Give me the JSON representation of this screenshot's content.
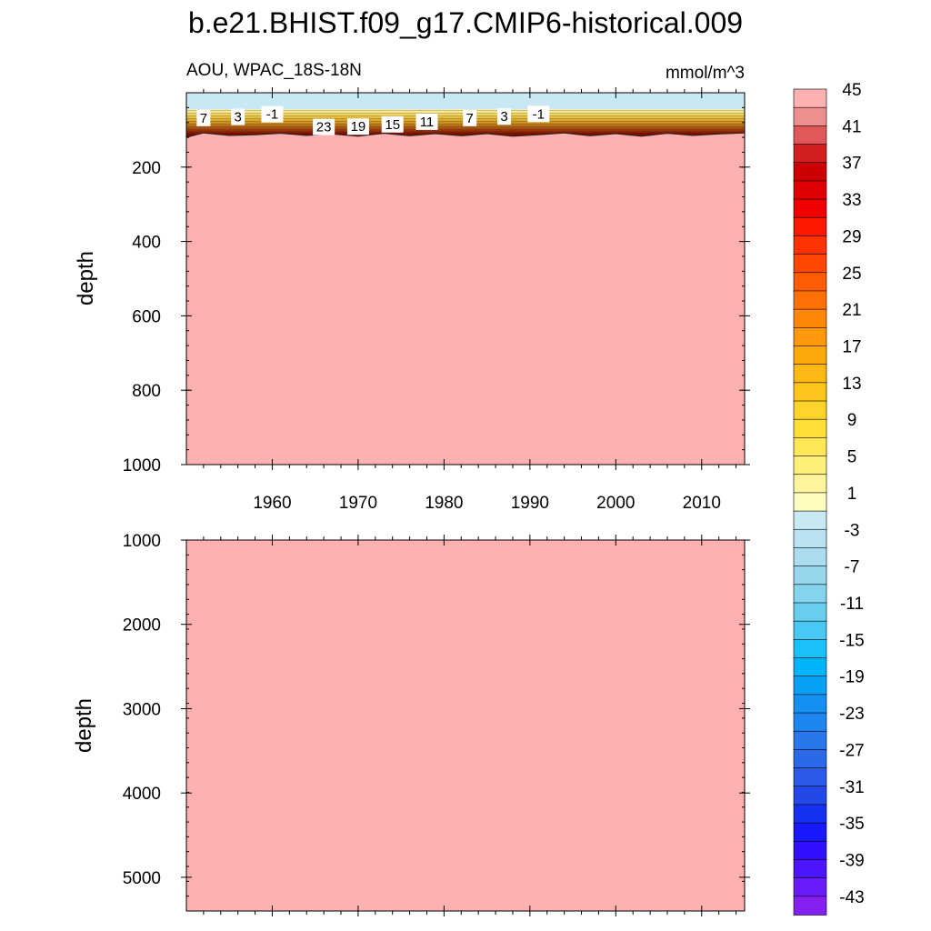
{
  "chart_data": {
    "type": "heatmap",
    "title": "b.e21.BHIST.f09_g17.CMIP6-historical.009",
    "subtitle_left": "AOU, WPAC_18S-18N",
    "subtitle_right": "mmol/m^3",
    "x": {
      "range": [
        1950,
        2015
      ],
      "ticks": [
        1960,
        1970,
        1980,
        1990,
        2000,
        2010
      ]
    },
    "panels": [
      {
        "ylabel": "depth",
        "ylim": [
          0,
          1000
        ],
        "yticks": [
          200,
          400,
          600,
          800,
          1000
        ],
        "surface_layer": {
          "value": -2,
          "depth_range": [
            0,
            45
          ]
        },
        "gradient_top_depth": 45,
        "max_contour_depth": 100,
        "interior_value": 47,
        "contour_labels": [
          {
            "year": 1952,
            "depth": 68,
            "text": "7"
          },
          {
            "year": 1956,
            "depth": 65,
            "text": "3"
          },
          {
            "year": 1960,
            "depth": 58,
            "text": "-1"
          },
          {
            "year": 1966,
            "depth": 92,
            "text": "23"
          },
          {
            "year": 1970,
            "depth": 91,
            "text": "19"
          },
          {
            "year": 1974,
            "depth": 85,
            "text": "15"
          },
          {
            "year": 1978,
            "depth": 78,
            "text": "11"
          },
          {
            "year": 1983,
            "depth": 68,
            "text": "7"
          },
          {
            "year": 1987,
            "depth": 64,
            "text": "3"
          },
          {
            "year": 1991,
            "depth": 57,
            "text": "-1"
          }
        ],
        "boundary": [
          {
            "year": 1950,
            "depth": 120
          },
          {
            "year": 1952,
            "depth": 108
          },
          {
            "year": 1955,
            "depth": 115
          },
          {
            "year": 1958,
            "depth": 113
          },
          {
            "year": 1961,
            "depth": 109
          },
          {
            "year": 1964,
            "depth": 115
          },
          {
            "year": 1967,
            "depth": 111
          },
          {
            "year": 1970,
            "depth": 117
          },
          {
            "year": 1973,
            "depth": 109
          },
          {
            "year": 1976,
            "depth": 116
          },
          {
            "year": 1979,
            "depth": 110
          },
          {
            "year": 1982,
            "depth": 116
          },
          {
            "year": 1985,
            "depth": 110
          },
          {
            "year": 1988,
            "depth": 117
          },
          {
            "year": 1991,
            "depth": 113
          },
          {
            "year": 1994,
            "depth": 108
          },
          {
            "year": 1997,
            "depth": 116
          },
          {
            "year": 2000,
            "depth": 110
          },
          {
            "year": 2003,
            "depth": 117
          },
          {
            "year": 2006,
            "depth": 109
          },
          {
            "year": 2009,
            "depth": 115
          },
          {
            "year": 2012,
            "depth": 111
          },
          {
            "year": 2015,
            "depth": 108
          }
        ]
      },
      {
        "ylabel": "depth",
        "ylim": [
          1000,
          5400
        ],
        "yticks": [
          1000,
          2000,
          3000,
          4000,
          5000
        ],
        "interior_value": 47
      }
    ],
    "colorbar": {
      "levels": [
        -45,
        -43,
        -41,
        -39,
        -37,
        -35,
        -33,
        -31,
        -29,
        -27,
        -25,
        -23,
        -21,
        -19,
        -17,
        -15,
        -13,
        -11,
        -9,
        -7,
        -5,
        -3,
        -1,
        1,
        3,
        5,
        7,
        9,
        11,
        13,
        15,
        17,
        19,
        21,
        23,
        25,
        27,
        29,
        31,
        33,
        35,
        37,
        39,
        41,
        43,
        45
      ],
      "label_values": [
        45,
        41,
        37,
        33,
        29,
        25,
        21,
        17,
        13,
        9,
        5,
        1,
        -3,
        -7,
        -11,
        -15,
        -19,
        -23,
        -27,
        -31,
        -35,
        -39,
        -43
      ],
      "colors": [
        "#8620f0",
        "#6a1cf8",
        "#4e16ff",
        "#3010ff",
        "#1818ff",
        "#1630f0",
        "#2448e8",
        "#2c5ae8",
        "#2a6ae8",
        "#2878ec",
        "#1e86f0",
        "#1490f4",
        "#0aa0f8",
        "#00b4fc",
        "#1ac0fa",
        "#48c8f4",
        "#68cef0",
        "#84d4ee",
        "#98d6ee",
        "#acdcf0",
        "#bae2f2",
        "#c8e8f4",
        "#fffcc0",
        "#fff59c",
        "#ffef7a",
        "#ffe758",
        "#ffde38",
        "#ffd32a",
        "#ffc51e",
        "#ffb814",
        "#ffa80c",
        "#ff980a",
        "#ff8608",
        "#ff7106",
        "#ff5c04",
        "#ff4602",
        "#ff3200",
        "#ff1800",
        "#f00000",
        "#de0000",
        "#cc0000",
        "#d21f1f",
        "#e05858",
        "#ed8f8f",
        "#ffb0b0"
      ]
    }
  }
}
